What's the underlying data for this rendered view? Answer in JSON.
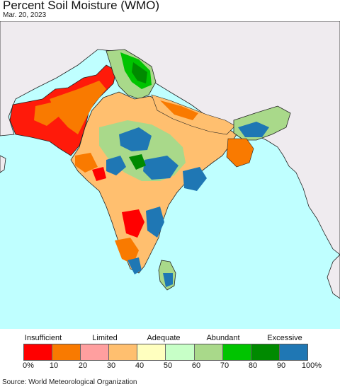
{
  "header": {
    "title": "Percent Soil Moisture (WMO)",
    "date": "Mar. 20, 2023"
  },
  "colors": {
    "sea": "#bfffff",
    "land_outside": "#efebef",
    "border": "#222222",
    "state_border": "#888888"
  },
  "legend": {
    "categories": [
      {
        "label": "Insufficient"
      },
      {
        "label": "Limited"
      },
      {
        "label": "Adequate"
      },
      {
        "label": "Abundant"
      },
      {
        "label": "Excessive"
      }
    ],
    "swatches": [
      "#ff0000",
      "#f97a00",
      "#ff9f9f",
      "#ffbf6f",
      "#ffffbf",
      "#c7ffc7",
      "#a9d98a",
      "#00c400",
      "#008a00",
      "#1f77b4"
    ],
    "ticks": [
      "0%",
      "10",
      "20",
      "30",
      "40",
      "50",
      "60",
      "70",
      "80",
      "90",
      "100%"
    ]
  },
  "footer": {
    "source": "Source: World Meteorological Organization"
  }
}
